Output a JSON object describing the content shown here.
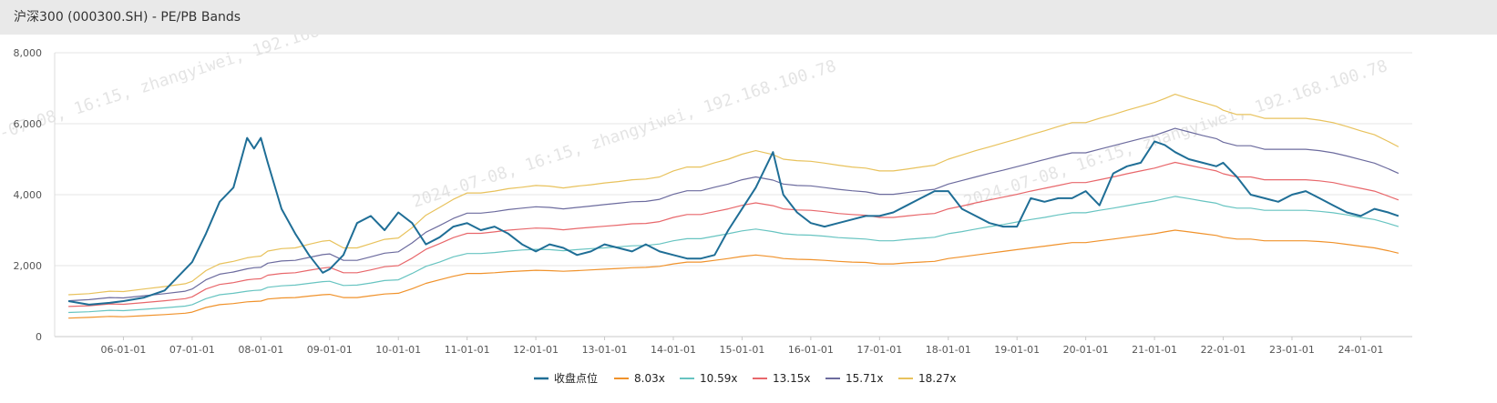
{
  "header": {
    "title": "沪深300 (000300.SH) - PE/PB Bands"
  },
  "watermark": {
    "text": "2024-07-08, 16:15, zhangyiwei, 192.168.100.78"
  },
  "chart_data": {
    "type": "line",
    "ylim": [
      0,
      8000
    ],
    "grid": true,
    "legend_position": "bottom-center",
    "y_ticks": [
      0,
      2000,
      4000,
      6000,
      8000
    ],
    "y_tick_labels": [
      "0",
      "2,000",
      "4,000",
      "6,000",
      "8,000"
    ],
    "x_ticks": [
      2006,
      2007,
      2008,
      2009,
      2010,
      2011,
      2012,
      2013,
      2014,
      2015,
      2016,
      2017,
      2018,
      2019,
      2020,
      2021,
      2022,
      2023,
      2024
    ],
    "x_tick_labels": [
      "06-01-01",
      "07-01-01",
      "08-01-01",
      "09-01-01",
      "10-01-01",
      "11-01-01",
      "12-01-01",
      "13-01-01",
      "14-01-01",
      "15-01-01",
      "16-01-01",
      "17-01-01",
      "18-01-01",
      "19-01-01",
      "20-01-01",
      "21-01-01",
      "22-01-01",
      "23-01-01",
      "24-01-01"
    ],
    "x": [
      2005.2,
      2005.5,
      2005.8,
      2006.0,
      2006.3,
      2006.6,
      2006.9,
      2007.0,
      2007.2,
      2007.4,
      2007.6,
      2007.8,
      2007.9,
      2008.0,
      2008.1,
      2008.3,
      2008.5,
      2008.7,
      2008.9,
      2009.0,
      2009.2,
      2009.4,
      2009.6,
      2009.8,
      2010.0,
      2010.2,
      2010.4,
      2010.6,
      2010.8,
      2011.0,
      2011.2,
      2011.4,
      2011.6,
      2011.8,
      2012.0,
      2012.2,
      2012.4,
      2012.6,
      2012.8,
      2013.0,
      2013.2,
      2013.4,
      2013.6,
      2013.8,
      2014.0,
      2014.2,
      2014.4,
      2014.6,
      2014.8,
      2015.0,
      2015.2,
      2015.45,
      2015.6,
      2015.8,
      2016.0,
      2016.2,
      2016.4,
      2016.6,
      2016.8,
      2017.0,
      2017.2,
      2017.4,
      2017.6,
      2017.8,
      2018.0,
      2018.2,
      2018.4,
      2018.6,
      2018.8,
      2019.0,
      2019.2,
      2019.4,
      2019.6,
      2019.8,
      2020.0,
      2020.2,
      2020.4,
      2020.6,
      2020.8,
      2021.0,
      2021.15,
      2021.3,
      2021.5,
      2021.7,
      2021.9,
      2022.0,
      2022.2,
      2022.4,
      2022.6,
      2022.8,
      2023.0,
      2023.2,
      2023.4,
      2023.6,
      2023.8,
      2024.0,
      2024.2,
      2024.4,
      2024.55
    ],
    "series": [
      {
        "name": "收盘点位",
        "color": "#1f6e96",
        "width": 2,
        "values": [
          1000,
          900,
          950,
          1000,
          1100,
          1300,
          1900,
          2100,
          2900,
          3800,
          4200,
          5600,
          5300,
          5600,
          4900,
          3600,
          2900,
          2300,
          1800,
          1900,
          2300,
          3200,
          3400,
          3000,
          3500,
          3200,
          2600,
          2800,
          3100,
          3200,
          3000,
          3100,
          2900,
          2600,
          2400,
          2600,
          2500,
          2300,
          2400,
          2600,
          2500,
          2400,
          2600,
          2400,
          2300,
          2200,
          2200,
          2300,
          3000,
          3600,
          4200,
          5200,
          4000,
          3500,
          3200,
          3100,
          3200,
          3300,
          3400,
          3400,
          3500,
          3700,
          3900,
          4100,
          4100,
          3600,
          3400,
          3200,
          3100,
          3100,
          3900,
          3800,
          3900,
          3900,
          4100,
          3700,
          4600,
          4800,
          4900,
          5500,
          5400,
          5200,
          5000,
          4900,
          4800,
          4900,
          4500,
          4000,
          3900,
          3800,
          4000,
          4100,
          3900,
          3700,
          3500,
          3400,
          3600,
          3500,
          3400
        ]
      },
      {
        "name": "8.03x",
        "color": "#f0922b",
        "width": 1.2,
        "values": [
          520,
          540,
          570,
          560,
          590,
          620,
          660,
          690,
          820,
          900,
          930,
          980,
          990,
          1000,
          1060,
          1090,
          1100,
          1140,
          1180,
          1190,
          1100,
          1100,
          1150,
          1200,
          1220,
          1350,
          1500,
          1600,
          1700,
          1780,
          1780,
          1800,
          1830,
          1850,
          1870,
          1860,
          1840,
          1860,
          1880,
          1900,
          1920,
          1940,
          1950,
          1980,
          2050,
          2100,
          2100,
          2150,
          2200,
          2260,
          2300,
          2250,
          2200,
          2180,
          2170,
          2150,
          2120,
          2100,
          2090,
          2050,
          2050,
          2080,
          2100,
          2120,
          2200,
          2250,
          2300,
          2350,
          2400,
          2450,
          2500,
          2550,
          2600,
          2650,
          2650,
          2700,
          2750,
          2800,
          2850,
          2900,
          2950,
          3000,
          2950,
          2900,
          2850,
          2800,
          2750,
          2750,
          2700,
          2700,
          2700,
          2700,
          2680,
          2650,
          2600,
          2550,
          2500,
          2420,
          2350
        ]
      },
      {
        "name": "10.59x",
        "color": "#67c4c1",
        "width": 1.2,
        "values": [
          680,
          700,
          740,
          730,
          770,
          810,
          860,
          900,
          1070,
          1180,
          1220,
          1280,
          1300,
          1310,
          1390,
          1430,
          1450,
          1500,
          1550,
          1560,
          1440,
          1450,
          1510,
          1580,
          1600,
          1780,
          1980,
          2100,
          2250,
          2340,
          2340,
          2370,
          2410,
          2440,
          2460,
          2450,
          2420,
          2450,
          2480,
          2500,
          2530,
          2560,
          2570,
          2610,
          2700,
          2760,
          2760,
          2830,
          2900,
          2980,
          3030,
          2960,
          2900,
          2870,
          2860,
          2830,
          2790,
          2770,
          2750,
          2700,
          2700,
          2740,
          2770,
          2800,
          2900,
          2960,
          3030,
          3100,
          3160,
          3230,
          3300,
          3360,
          3430,
          3490,
          3490,
          3560,
          3620,
          3690,
          3760,
          3820,
          3890,
          3950,
          3890,
          3820,
          3760,
          3690,
          3620,
          3620,
          3560,
          3560,
          3560,
          3560,
          3530,
          3490,
          3430,
          3360,
          3300,
          3190,
          3100
        ]
      },
      {
        "name": "13.15x",
        "color": "#e8676b",
        "width": 1.2,
        "values": [
          850,
          870,
          920,
          910,
          960,
          1010,
          1070,
          1120,
          1340,
          1470,
          1520,
          1600,
          1620,
          1630,
          1730,
          1780,
          1800,
          1870,
          1930,
          1950,
          1800,
          1800,
          1880,
          1970,
          2000,
          2210,
          2460,
          2620,
          2790,
          2910,
          2910,
          2950,
          3000,
          3030,
          3060,
          3050,
          3010,
          3050,
          3080,
          3110,
          3140,
          3180,
          3190,
          3240,
          3360,
          3440,
          3440,
          3520,
          3600,
          3700,
          3770,
          3690,
          3600,
          3570,
          3560,
          3520,
          3470,
          3440,
          3420,
          3360,
          3360,
          3400,
          3440,
          3470,
          3600,
          3680,
          3770,
          3850,
          3930,
          4010,
          4100,
          4180,
          4260,
          4340,
          4340,
          4420,
          4500,
          4590,
          4670,
          4750,
          4830,
          4910,
          4830,
          4750,
          4670,
          4590,
          4500,
          4500,
          4420,
          4420,
          4420,
          4420,
          4390,
          4340,
          4260,
          4180,
          4100,
          3960,
          3850
        ]
      },
      {
        "name": "15.71x",
        "color": "#6c6b9e",
        "width": 1.2,
        "values": [
          1010,
          1040,
          1100,
          1090,
          1150,
          1210,
          1280,
          1340,
          1600,
          1760,
          1820,
          1910,
          1940,
          1950,
          2070,
          2130,
          2150,
          2230,
          2310,
          2330,
          2150,
          2150,
          2250,
          2350,
          2390,
          2640,
          2940,
          3130,
          3330,
          3480,
          3480,
          3520,
          3580,
          3620,
          3660,
          3640,
          3600,
          3640,
          3680,
          3720,
          3760,
          3800,
          3810,
          3870,
          4010,
          4110,
          4110,
          4210,
          4300,
          4420,
          4500,
          4410,
          4300,
          4260,
          4250,
          4200,
          4150,
          4110,
          4080,
          4010,
          4010,
          4060,
          4110,
          4150,
          4300,
          4400,
          4500,
          4600,
          4690,
          4790,
          4890,
          4990,
          5090,
          5180,
          5180,
          5280,
          5380,
          5480,
          5580,
          5670,
          5770,
          5870,
          5770,
          5670,
          5580,
          5480,
          5380,
          5380,
          5280,
          5280,
          5280,
          5280,
          5240,
          5180,
          5090,
          4990,
          4890,
          4730,
          4600
        ]
      },
      {
        "name": "18.27x",
        "color": "#e8c25c",
        "width": 1.2,
        "values": [
          1180,
          1210,
          1280,
          1270,
          1340,
          1410,
          1490,
          1560,
          1860,
          2050,
          2120,
          2220,
          2250,
          2270,
          2410,
          2480,
          2500,
          2600,
          2690,
          2710,
          2500,
          2500,
          2620,
          2740,
          2780,
          3070,
          3420,
          3640,
          3870,
          4050,
          4050,
          4100,
          4170,
          4210,
          4260,
          4240,
          4190,
          4240,
          4280,
          4330,
          4370,
          4420,
          4440,
          4500,
          4670,
          4780,
          4780,
          4900,
          5000,
          5140,
          5240,
          5130,
          5000,
          4960,
          4940,
          4890,
          4830,
          4780,
          4750,
          4670,
          4670,
          4720,
          4780,
          4830,
          5000,
          5120,
          5240,
          5350,
          5460,
          5570,
          5690,
          5800,
          5920,
          6030,
          6030,
          6150,
          6260,
          6380,
          6490,
          6600,
          6710,
          6830,
          6710,
          6600,
          6490,
          6380,
          6260,
          6260,
          6150,
          6150,
          6150,
          6150,
          6100,
          6030,
          5920,
          5800,
          5690,
          5500,
          5350
        ]
      }
    ]
  }
}
